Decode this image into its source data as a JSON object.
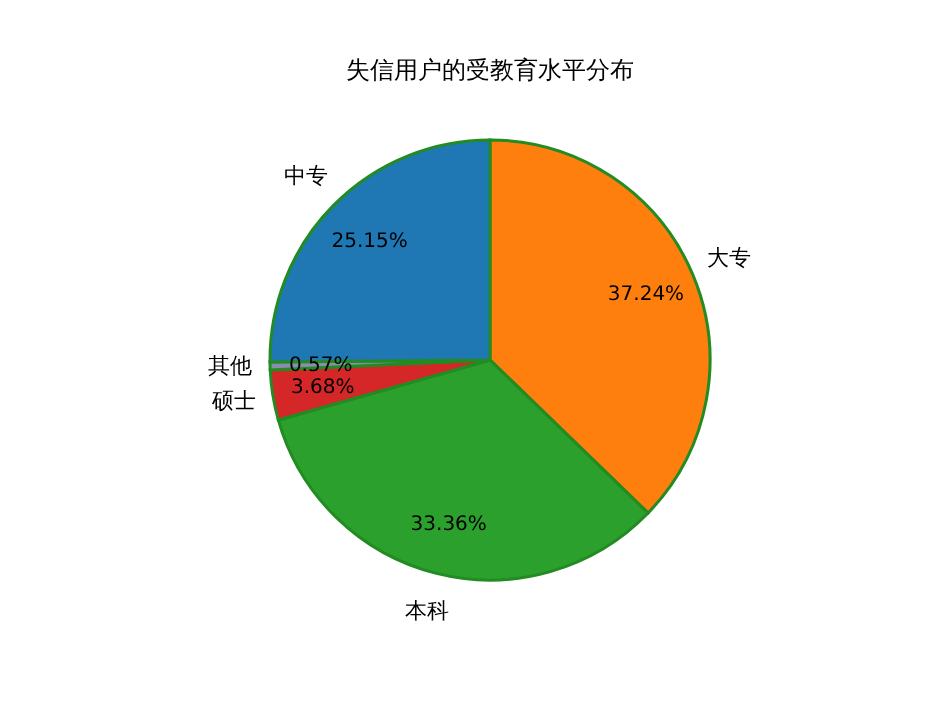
{
  "chart_data": {
    "type": "pie",
    "title": "失信用户的受教育水平分布",
    "categories": [
      "大专",
      "本科",
      "硕士",
      "其他",
      "中专"
    ],
    "values": [
      37.24,
      33.36,
      3.68,
      0.57,
      25.15
    ],
    "value_labels": [
      "37.24%",
      "33.36%",
      "3.68%",
      "0.57%",
      "25.15%"
    ],
    "colors": [
      "#ff7f0e",
      "#2ca02c",
      "#d62728",
      "#8c8cb0",
      "#1f77b4"
    ]
  }
}
